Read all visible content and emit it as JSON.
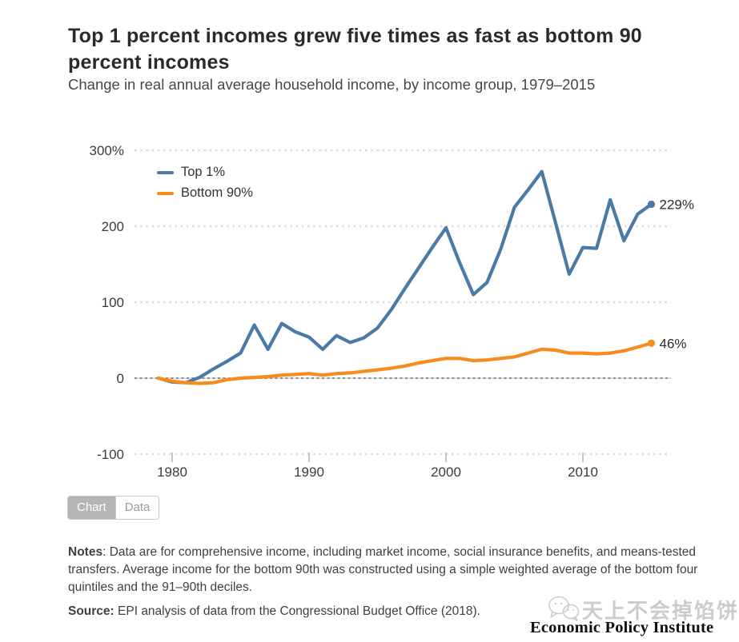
{
  "header": {
    "title": "Top 1 percent incomes grew five times as fast as bottom 90 percent incomes",
    "subtitle": "Change in real annual average household income, by income group, 1979–2015"
  },
  "chart_data": {
    "type": "line",
    "x": [
      1979,
      1980,
      1981,
      1982,
      1983,
      1984,
      1985,
      1986,
      1987,
      1988,
      1989,
      1990,
      1991,
      1992,
      1993,
      1994,
      1995,
      1996,
      1997,
      1998,
      1999,
      2000,
      2001,
      2002,
      2003,
      2004,
      2005,
      2006,
      2007,
      2008,
      2009,
      2010,
      2011,
      2012,
      2013,
      2014,
      2015
    ],
    "series": [
      {
        "name": "Top 1%",
        "color": "#4a7ba6",
        "end_label": "229%",
        "values": [
          0,
          -5,
          -6,
          1,
          12,
          22,
          33,
          70,
          38,
          72,
          61,
          54,
          38,
          56,
          47,
          53,
          66,
          90,
          118,
          145,
          172,
          198,
          152,
          110,
          126,
          170,
          225,
          248,
          272,
          205,
          137,
          172,
          171,
          235,
          181,
          216,
          229
        ]
      },
      {
        "name": "Bottom 90%",
        "color": "#f78b1d",
        "end_label": "46%",
        "values": [
          0,
          -4,
          -6,
          -7,
          -6,
          -2,
          0,
          1,
          2,
          4,
          5,
          6,
          4,
          6,
          7,
          9,
          11,
          13,
          16,
          20,
          23,
          26,
          26,
          23,
          24,
          26,
          28,
          33,
          38,
          37,
          33,
          33,
          32,
          33,
          36,
          41,
          46
        ]
      }
    ],
    "y_ticks": [
      {
        "label": "300%",
        "value": 300
      },
      {
        "label": "200",
        "value": 200
      },
      {
        "label": "100",
        "value": 100
      },
      {
        "label": "0",
        "value": 0
      },
      {
        "label": "-100",
        "value": -100
      }
    ],
    "x_ticks": [
      1980,
      1990,
      2000,
      2010
    ],
    "ylim": [
      -100,
      300
    ],
    "xlim": [
      1979,
      2015
    ],
    "grid": "dotted horizontal gridlines, solid-dashed zero line",
    "legend_position": "top-left"
  },
  "toolbar": {
    "chart_tab": "Chart",
    "data_tab": "Data"
  },
  "footer": {
    "notes_label": "Notes",
    "notes_text": ": Data are for comprehensive income, including market income, social insurance benefits, and means-tested transfers. Average income for the bottom 90th was constructed using a simple weighted average of the bottom four quintiles and the 91–90th deciles.",
    "source_label": "Source:",
    "source_text": " EPI analysis of data from the Congressional Budget Office (2018)."
  },
  "watermark": {
    "icon": "chat-bubbles-icon",
    "cjk_text": "天上不会掉馅饼",
    "org_text": "Economic Policy Institute"
  },
  "colors": {
    "top1_blue": "#4a7ba6",
    "bottom90_orange": "#f78b1d",
    "gridline": "#dcdcdc",
    "zero_line": "#8e8e8e",
    "axis_text": "#3b3b3b"
  }
}
